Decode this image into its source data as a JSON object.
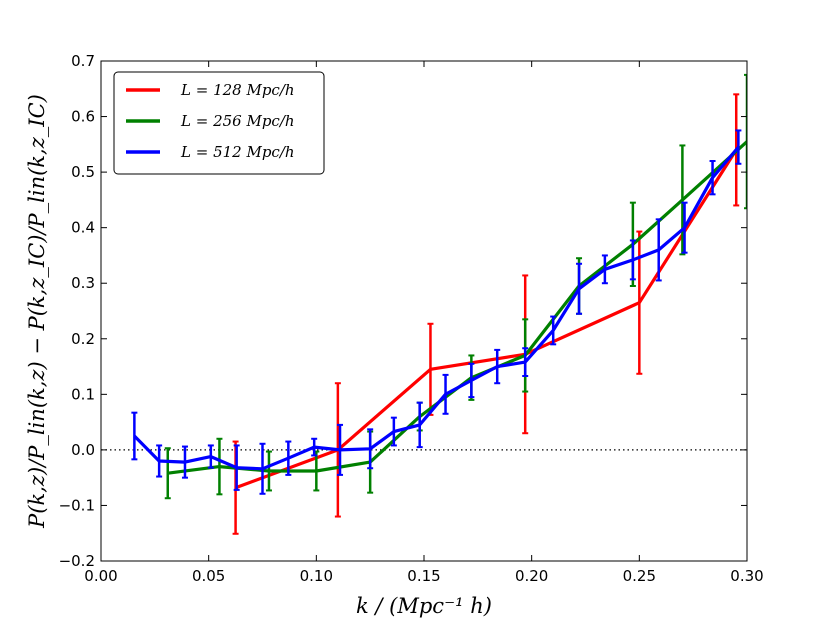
{
  "chart_data": {
    "type": "line",
    "title": "",
    "xlabel": "k / (Mpc⁻¹ h)",
    "ylabel": "P(k,z)/P_lin(k,z) − P(k,z_IC)/P_lin(k,z_IC)",
    "xlim": [
      0.0,
      0.3
    ],
    "ylim": [
      -0.2,
      0.7
    ],
    "xticks": [
      "0.00",
      "0.05",
      "0.10",
      "0.15",
      "0.20",
      "0.25",
      "0.30"
    ],
    "yticks": [
      "−0.2",
      "−0.1",
      "0.0",
      "0.1",
      "0.2",
      "0.3",
      "0.4",
      "0.5",
      "0.6",
      "0.7"
    ],
    "reference_line": {
      "y": 0.0,
      "style": "dotted"
    },
    "grid": false,
    "legend_position": "top-left",
    "series": [
      {
        "name": "L = 128 Mpc/h",
        "color": "#ff0000",
        "x": [
          0.0625,
          0.11,
          0.153,
          0.197,
          0.25,
          0.295
        ],
        "y": [
          -0.068,
          0.0,
          0.145,
          0.172,
          0.265,
          0.54
        ],
        "err": [
          0.083,
          0.12,
          0.082,
          0.142,
          0.128,
          0.1
        ]
      },
      {
        "name": "L = 256 Mpc/h",
        "color": "#008000",
        "x": [
          0.031,
          0.055,
          0.078,
          0.1,
          0.125,
          0.148,
          0.172,
          0.197,
          0.222,
          0.247,
          0.27,
          0.3
        ],
        "y": [
          -0.042,
          -0.03,
          -0.038,
          -0.038,
          -0.022,
          0.06,
          0.13,
          0.17,
          0.295,
          0.37,
          0.45,
          0.555
        ],
        "err": [
          0.045,
          0.05,
          0.035,
          0.035,
          0.055,
          0.025,
          0.04,
          0.065,
          0.05,
          0.075,
          0.098,
          0.12
        ]
      },
      {
        "name": "L = 512 Mpc/h",
        "color": "#0000ff",
        "x": [
          0.0155,
          0.027,
          0.039,
          0.051,
          0.063,
          0.075,
          0.087,
          0.099,
          0.111,
          0.125,
          0.136,
          0.148,
          0.16,
          0.172,
          0.184,
          0.197,
          0.21,
          0.222,
          0.234,
          0.247,
          0.259,
          0.271,
          0.284,
          0.296
        ],
        "y": [
          0.025,
          -0.02,
          -0.022,
          -0.012,
          -0.032,
          -0.034,
          -0.015,
          0.005,
          0.0,
          0.002,
          0.033,
          0.045,
          0.1,
          0.125,
          0.15,
          0.158,
          0.215,
          0.29,
          0.325,
          0.342,
          0.36,
          0.4,
          0.49,
          0.545
        ],
        "err": [
          0.042,
          0.028,
          0.028,
          0.02,
          0.04,
          0.045,
          0.03,
          0.015,
          0.045,
          0.035,
          0.025,
          0.04,
          0.035,
          0.03,
          0.03,
          0.025,
          0.025,
          0.045,
          0.025,
          0.035,
          0.055,
          0.045,
          0.03,
          0.03
        ]
      }
    ]
  }
}
